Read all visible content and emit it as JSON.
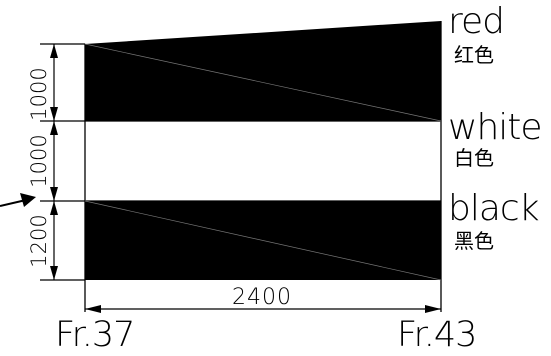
{
  "bands": [
    {
      "label": "red",
      "label_zh": "红色",
      "fill": "#000000",
      "height_dim": "1000"
    },
    {
      "label": "white",
      "label_zh": "白色",
      "fill": "#ffffff",
      "height_dim": "1000"
    },
    {
      "label": "black",
      "label_zh": "黑色",
      "fill": "#000000",
      "height_dim": "1200"
    }
  ],
  "width_dim": "2400",
  "frame_left": "Fr.37",
  "frame_right": "Fr.43",
  "colors": {
    "ink": "#000000",
    "paper": "#ffffff"
  }
}
